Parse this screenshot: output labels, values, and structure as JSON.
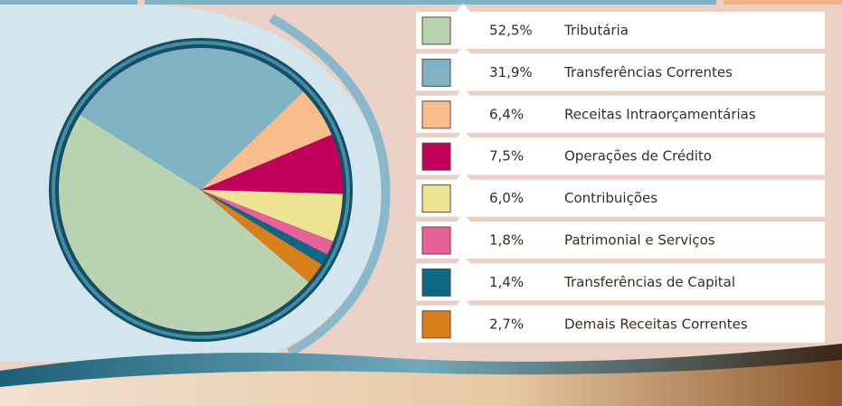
{
  "chart_data": {
    "type": "pie",
    "categories": [
      "Tributária",
      "Transferências Correntes",
      "Receitas Intraorçamentárias",
      "Operações de Crédito",
      "Contribuições",
      "Patrimonial e Serviços",
      "Transferências de Capital",
      "Demais Receitas Correntes"
    ],
    "values": [
      52.5,
      31.9,
      6.4,
      7.5,
      6.0,
      1.8,
      1.4,
      2.7
    ],
    "value_labels": [
      "52,5%",
      "31,9%",
      "6,4%",
      "7,5%",
      "6,0%",
      "1,8%",
      "1,4%",
      "2,7%"
    ],
    "colors": [
      "#b9d2b0",
      "#7fb3c4",
      "#f8bd8b",
      "#c0005a",
      "#ece393",
      "#e8609a",
      "#0e6784",
      "#d97f1a"
    ]
  }
}
